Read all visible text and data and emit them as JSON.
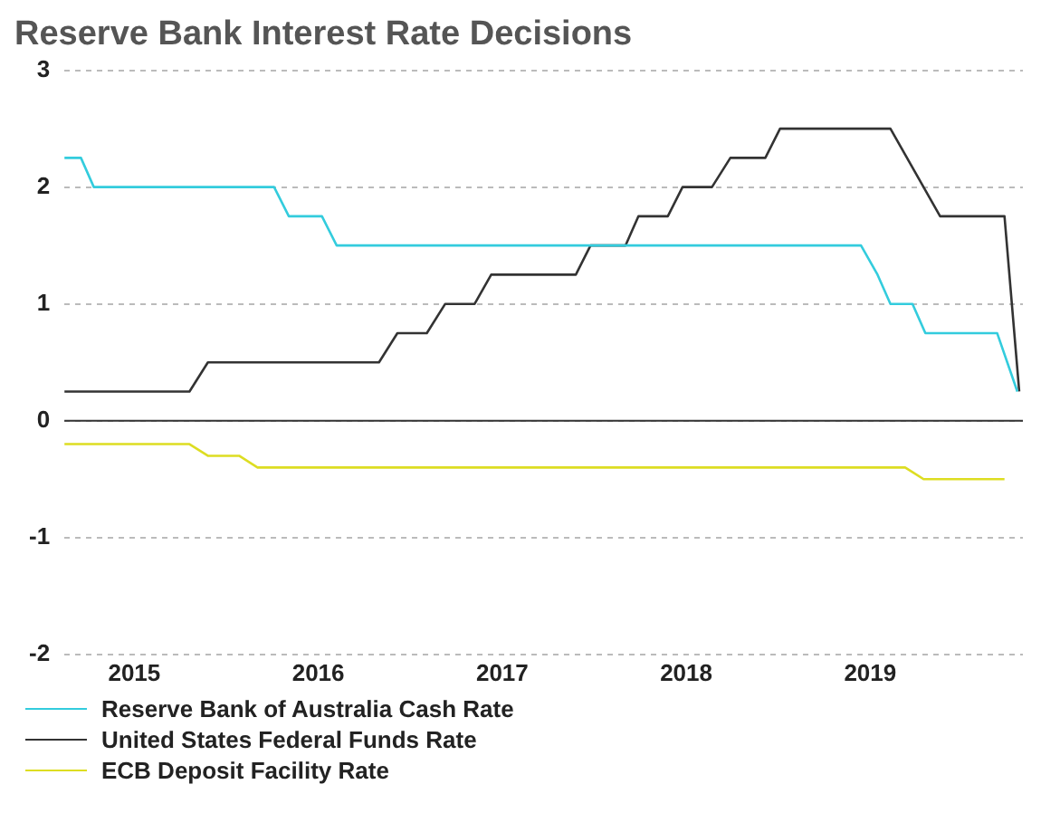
{
  "chart_data": {
    "type": "line",
    "title": "Reserve Bank Interest Rate Decisions",
    "xlim": [
      2014.62,
      2019.83
    ],
    "xticks": [
      2015,
      2016,
      2017,
      2018,
      2019
    ],
    "ylim": [
      -2,
      3
    ],
    "yticks": [
      -2,
      -1,
      0,
      1,
      2,
      3
    ],
    "grid": "y",
    "legend": "bottom left",
    "marker": "none",
    "line_style": "solid",
    "ref_lines": [
      {
        "axis": "y",
        "value": 0,
        "color": "#333333"
      }
    ],
    "series": [
      {
        "name": "Reserve Bank of Australia Cash Rate",
        "color": "#33ccdd",
        "x": [
          2014.62,
          2014.71,
          2014.78,
          2015.76,
          2015.84,
          2016.02,
          2016.1,
          2018.95,
          2019.04,
          2019.11,
          2019.23,
          2019.3,
          2019.69,
          2019.8
        ],
        "values": [
          2.25,
          2.25,
          2.0,
          2.0,
          1.75,
          1.75,
          1.5,
          1.5,
          1.25,
          1.0,
          1.0,
          0.75,
          0.75,
          0.25
        ]
      },
      {
        "name": "United States Federal Funds Rate",
        "color": "#333333",
        "x": [
          2014.62,
          2015.3,
          2015.4,
          2016.33,
          2016.43,
          2016.59,
          2016.69,
          2016.85,
          2016.94,
          2017.4,
          2017.48,
          2017.67,
          2017.74,
          2017.9,
          2017.98,
          2018.14,
          2018.24,
          2018.43,
          2018.51,
          2019.11,
          2019.38,
          2019.73,
          2019.81
        ],
        "values": [
          0.25,
          0.25,
          0.5,
          0.5,
          0.75,
          0.75,
          1.0,
          1.0,
          1.25,
          1.25,
          1.5,
          1.5,
          1.75,
          1.75,
          2.0,
          2.0,
          2.25,
          2.25,
          2.5,
          2.5,
          1.75,
          1.75,
          0.25
        ]
      },
      {
        "name": "ECB Deposit Facility Rate",
        "color": "#dddd22",
        "x": [
          2014.62,
          2015.3,
          2015.4,
          2015.57,
          2015.67,
          2019.19,
          2019.29,
          2019.73
        ],
        "values": [
          -0.2,
          -0.2,
          -0.3,
          -0.3,
          -0.4,
          -0.4,
          -0.5,
          -0.5
        ]
      }
    ]
  }
}
